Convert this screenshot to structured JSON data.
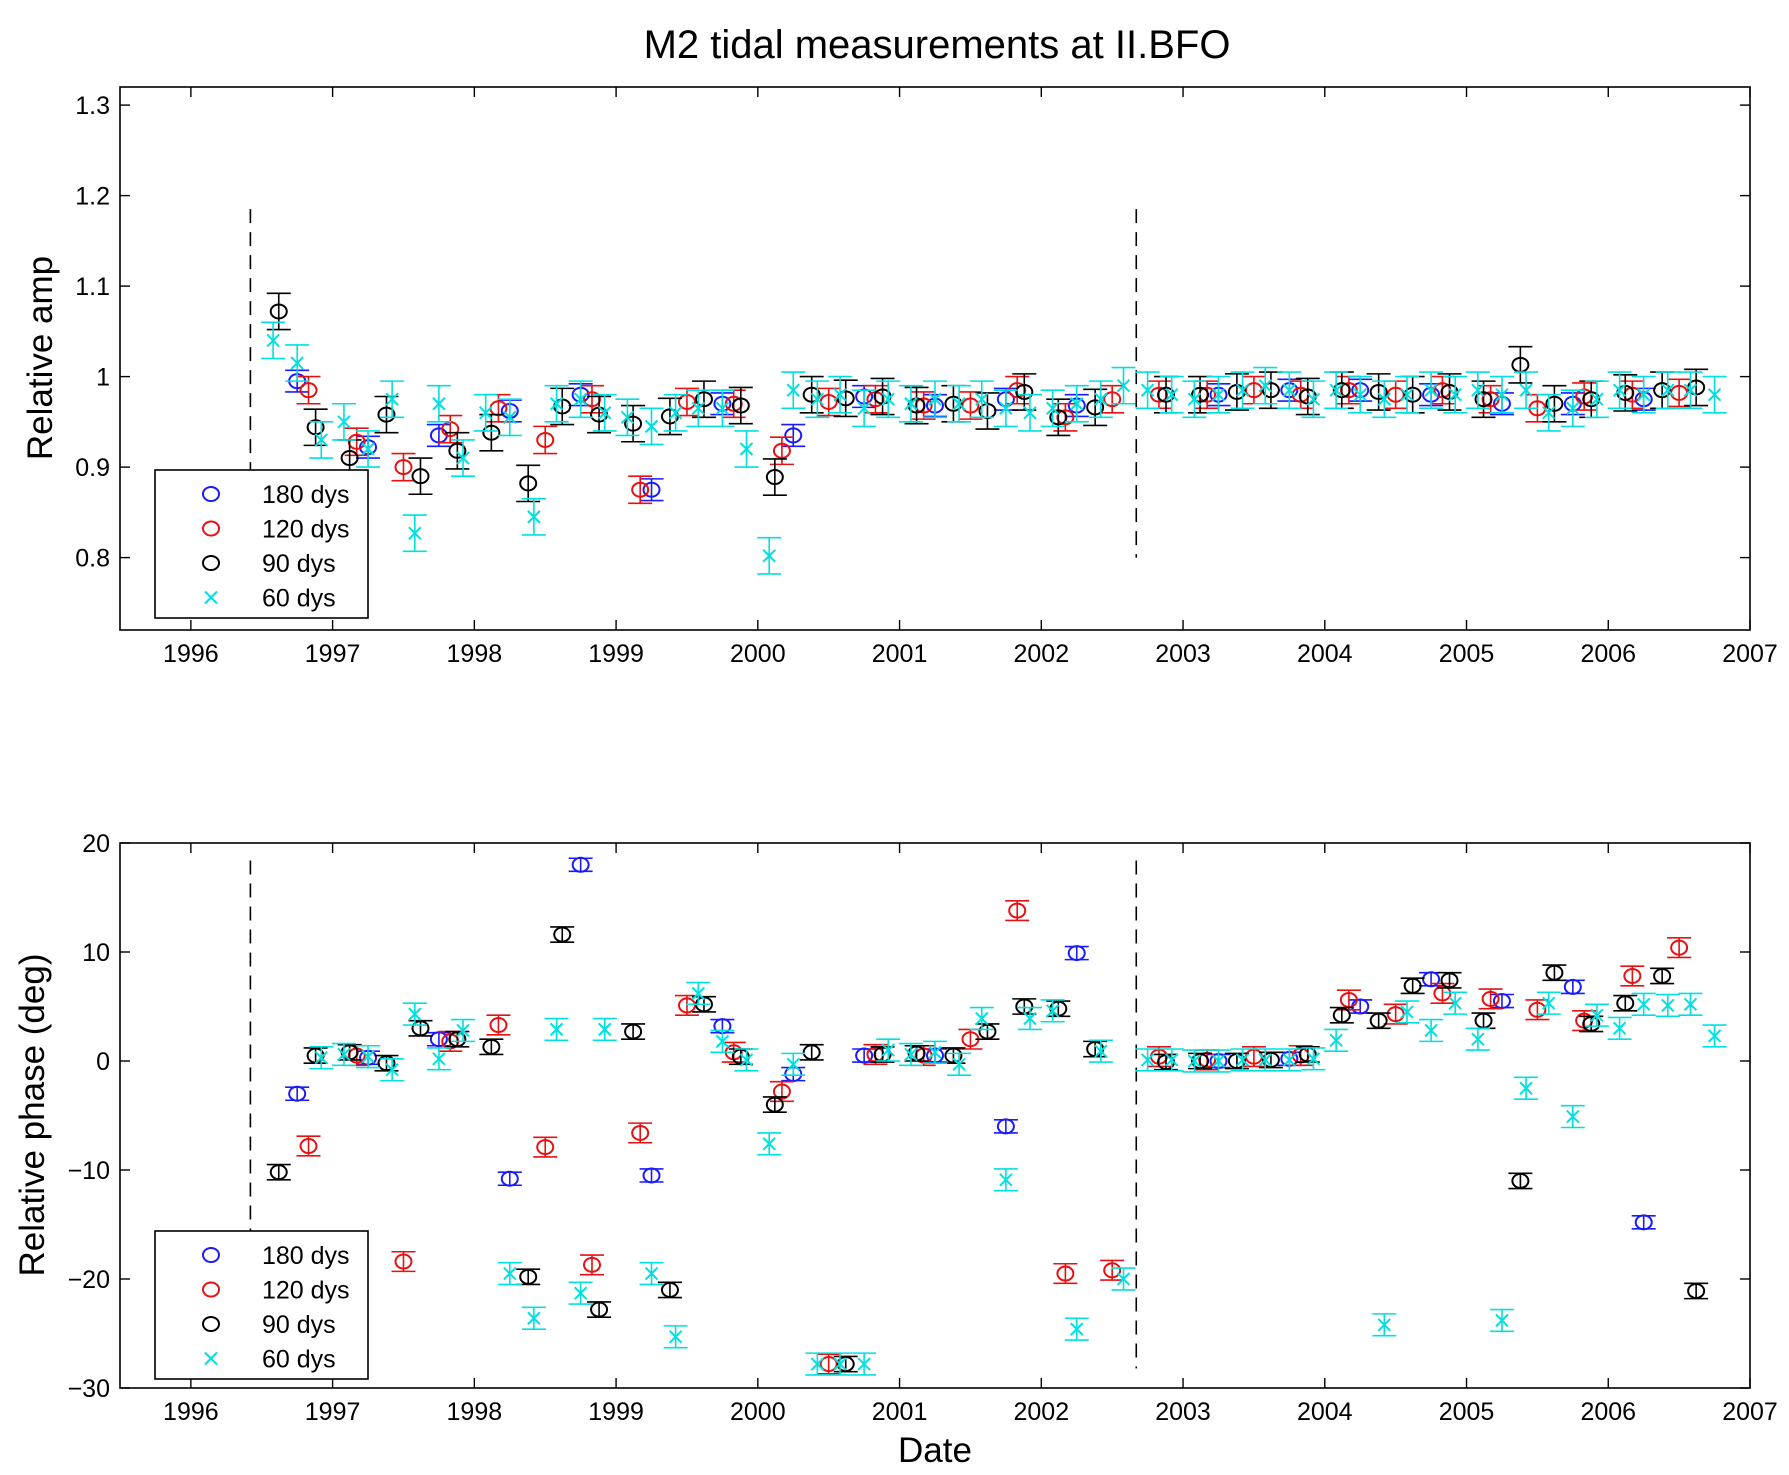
{
  "colors": {
    "180 dys": "#1a1aff",
    "120 dys": "#e81010",
    "90 dys": "#000000",
    "60 dys": "#00e0e0"
  },
  "chart_data": [
    {
      "type": "scatter",
      "title": "M2 tidal measurements at II.BFO",
      "xlabel": "",
      "ylabel": "Relative amp",
      "xlim": [
        1995.5,
        2007.0
      ],
      "ylim": [
        0.72,
        1.32
      ],
      "x_ticks": [
        1996,
        1997,
        1998,
        1999,
        2000,
        2001,
        2002,
        2003,
        2004,
        2005,
        2006,
        2007
      ],
      "x_tick_labels": [
        "1996",
        "1997",
        "1998",
        "1999",
        "2000",
        "2001",
        "2002",
        "2003",
        "2004",
        "2005",
        "2006",
        "2007"
      ],
      "y_ticks": [
        0.8,
        0.9,
        1.0,
        1.1,
        1.2,
        1.3
      ],
      "y_tick_labels": [
        "0.8",
        "0.9",
        "1",
        "1.1",
        "1.2",
        "1.3"
      ],
      "vlines": [
        1996.42,
        2002.67
      ],
      "vline_range": [
        0.8,
        1.185
      ],
      "legend_position": "bottom-left",
      "series": [
        {
          "name": "180 dys",
          "marker": "circle",
          "err": 0.012,
          "x": [
            1996.75,
            1997.25,
            1997.75,
            1998.25,
            1998.75,
            1999.25,
            1999.75,
            2000.25,
            2000.75,
            2001.25,
            2001.75,
            2002.25,
            2003.25,
            2003.75,
            2004.25,
            2004.75,
            2005.25,
            2005.75,
            2006.25
          ],
          "y": [
            0.995,
            0.922,
            0.935,
            0.962,
            0.98,
            0.875,
            0.97,
            0.935,
            0.978,
            0.968,
            0.975,
            0.968,
            0.98,
            0.985,
            0.985,
            0.98,
            0.97,
            0.97,
            0.975
          ]
        },
        {
          "name": "120 dys",
          "marker": "circle",
          "err": 0.015,
          "x": [
            1996.83,
            1997.17,
            1997.5,
            1997.83,
            1998.17,
            1998.5,
            1998.83,
            1999.17,
            1999.5,
            1999.83,
            2000.17,
            2000.5,
            2000.83,
            2001.17,
            2001.5,
            2001.83,
            2002.17,
            2002.5,
            2002.83,
            2003.17,
            2003.5,
            2003.83,
            2004.17,
            2004.5,
            2004.83,
            2005.17,
            2005.5,
            2005.83,
            2006.17,
            2006.5
          ],
          "y": [
            0.985,
            0.928,
            0.9,
            0.942,
            0.965,
            0.93,
            0.975,
            0.875,
            0.972,
            0.97,
            0.918,
            0.972,
            0.975,
            0.968,
            0.968,
            0.985,
            0.955,
            0.975,
            0.98,
            0.98,
            0.985,
            0.98,
            0.985,
            0.98,
            0.985,
            0.975,
            0.965,
            0.978,
            0.98,
            0.982
          ]
        },
        {
          "name": "90 dys",
          "marker": "circle",
          "err": 0.02,
          "x": [
            1996.62,
            1996.88,
            1997.12,
            1997.38,
            1997.62,
            1997.88,
            1998.12,
            1998.38,
            1998.62,
            1998.88,
            1999.12,
            1999.38,
            1999.62,
            1999.88,
            2000.12,
            2000.38,
            2000.62,
            2000.88,
            2001.12,
            2001.38,
            2001.62,
            2001.88,
            2002.12,
            2002.38,
            2002.88,
            2003.12,
            2003.38,
            2003.62,
            2003.88,
            2004.12,
            2004.38,
            2004.62,
            2004.88,
            2005.12,
            2005.38,
            2005.62,
            2005.88,
            2006.12,
            2006.38,
            2006.62
          ],
          "y": [
            1.072,
            0.944,
            0.91,
            0.958,
            0.89,
            0.918,
            0.938,
            0.882,
            0.967,
            0.958,
            0.948,
            0.956,
            0.975,
            0.968,
            0.889,
            0.98,
            0.976,
            0.978,
            0.968,
            0.97,
            0.962,
            0.983,
            0.955,
            0.966,
            0.98,
            0.98,
            0.983,
            0.985,
            0.978,
            0.985,
            0.983,
            0.98,
            0.983,
            0.975,
            1.013,
            0.97,
            0.975,
            0.982,
            0.985,
            0.988
          ]
        },
        {
          "name": "60 dys",
          "marker": "x",
          "err": 0.02,
          "x": [
            1996.58,
            1996.75,
            1996.92,
            1997.08,
            1997.25,
            1997.42,
            1997.58,
            1997.75,
            1997.92,
            1998.08,
            1998.25,
            1998.42,
            1998.58,
            1998.75,
            1998.92,
            1999.08,
            1999.25,
            1999.42,
            1999.58,
            1999.75,
            1999.92,
            2000.08,
            2000.25,
            2000.42,
            2000.58,
            2000.75,
            2000.92,
            2001.08,
            2001.25,
            2001.42,
            2001.58,
            2001.75,
            2001.92,
            2002.08,
            2002.25,
            2002.42,
            2002.58,
            2002.75,
            2002.92,
            2003.08,
            2003.25,
            2003.42,
            2003.58,
            2003.75,
            2003.92,
            2004.08,
            2004.25,
            2004.42,
            2004.58,
            2004.75,
            2004.92,
            2005.08,
            2005.25,
            2005.42,
            2005.58,
            2005.75,
            2005.92,
            2006.08,
            2006.25,
            2006.42,
            2006.58,
            2006.75
          ],
          "y": [
            1.04,
            1.015,
            0.93,
            0.95,
            0.92,
            0.975,
            0.827,
            0.97,
            0.91,
            0.96,
            0.955,
            0.845,
            0.97,
            0.975,
            0.96,
            0.955,
            0.945,
            0.96,
            0.965,
            0.965,
            0.92,
            0.802,
            0.985,
            0.975,
            0.98,
            0.965,
            0.975,
            0.97,
            0.975,
            0.97,
            0.975,
            0.965,
            0.96,
            0.965,
            0.97,
            0.975,
            0.99,
            0.985,
            0.98,
            0.975,
            0.98,
            0.985,
            0.99,
            0.985,
            0.975,
            0.985,
            0.98,
            0.975,
            0.98,
            0.985,
            0.98,
            0.985,
            0.98,
            0.985,
            0.96,
            0.965,
            0.975,
            0.985,
            0.98,
            0.985,
            0.985,
            0.98
          ]
        }
      ]
    },
    {
      "type": "scatter",
      "title": "",
      "xlabel": "Date",
      "ylabel": "Relative phase (deg)",
      "xlim": [
        1995.5,
        2007.0
      ],
      "ylim": [
        -30,
        20
      ],
      "x_ticks": [
        1996,
        1997,
        1998,
        1999,
        2000,
        2001,
        2002,
        2003,
        2004,
        2005,
        2006,
        2007
      ],
      "x_tick_labels": [
        "1996",
        "1997",
        "1998",
        "1999",
        "2000",
        "2001",
        "2002",
        "2003",
        "2004",
        "2005",
        "2006",
        "2007"
      ],
      "y_ticks": [
        -30,
        -20,
        -10,
        0,
        10,
        20
      ],
      "y_tick_labels": [
        "−30",
        "−20",
        "−10",
        "0",
        "10",
        "20"
      ],
      "vlines": [
        1996.42,
        2002.67
      ],
      "vline_range": [
        -28.2,
        18.4
      ],
      "legend_position": "bottom-left",
      "series": [
        {
          "name": "180 dys",
          "marker": "circle",
          "err": 0.6,
          "x": [
            1996.75,
            1997.25,
            1997.75,
            1998.25,
            1998.75,
            1999.25,
            1999.75,
            2000.25,
            2000.75,
            2001.25,
            2001.75,
            2002.25,
            2003.25,
            2003.75,
            2004.25,
            2004.75,
            2005.25,
            2005.75,
            2006.25
          ],
          "y": [
            -3,
            0.3,
            2,
            -10.8,
            18,
            -10.5,
            3.2,
            -1.2,
            0.5,
            0.5,
            -6,
            9.9,
            0,
            0.2,
            5,
            7.5,
            5.5,
            6.8,
            -14.8
          ]
        },
        {
          "name": "120 dys",
          "marker": "circle",
          "err": 0.9,
          "x": [
            1996.83,
            1997.17,
            1997.5,
            1997.83,
            1998.17,
            1998.5,
            1998.83,
            1999.17,
            1999.5,
            1999.83,
            2000.17,
            2000.5,
            2000.83,
            2001.17,
            2001.5,
            2001.83,
            2002.17,
            2002.5,
            2002.83,
            2003.17,
            2003.5,
            2003.83,
            2004.17,
            2004.5,
            2004.83,
            2005.17,
            2005.5,
            2005.83,
            2006.17,
            2006.5
          ],
          "y": [
            -7.8,
            0.5,
            -18.4,
            1.8,
            3.3,
            -7.9,
            -18.7,
            -6.6,
            5.1,
            0.8,
            -2.8,
            -27.8,
            0.6,
            0.5,
            2,
            13.8,
            -19.5,
            -19.2,
            0.4,
            0.1,
            0.4,
            0.5,
            5.6,
            4.3,
            6.2,
            5.7,
            4.7,
            3.7,
            7.8,
            10.4
          ]
        },
        {
          "name": "90 dys",
          "marker": "circle",
          "err": 0.7,
          "x": [
            1996.62,
            1996.88,
            1997.12,
            1997.38,
            1997.62,
            1997.88,
            1998.12,
            1998.38,
            1998.62,
            1998.88,
            1999.12,
            1999.38,
            1999.62,
            1999.88,
            2000.12,
            2000.38,
            2000.62,
            2000.88,
            2001.12,
            2001.38,
            2001.62,
            2001.88,
            2002.12,
            2002.38,
            2002.88,
            2003.12,
            2003.38,
            2003.62,
            2003.88,
            2004.12,
            2004.38,
            2004.62,
            2004.88,
            2005.12,
            2005.38,
            2005.62,
            2005.88,
            2006.12,
            2006.38,
            2006.62
          ],
          "y": [
            -10.2,
            0.5,
            0.8,
            -0.2,
            3,
            2,
            1.3,
            -19.8,
            11.6,
            -22.8,
            2.7,
            -21,
            5.2,
            0.4,
            -4,
            0.8,
            -27.8,
            0.6,
            0.7,
            0.5,
            2.7,
            5,
            4.8,
            1.1,
            -0.1,
            0,
            0,
            0.1,
            0.6,
            4.2,
            3.7,
            6.9,
            7.4,
            3.7,
            -11,
            8.1,
            3.4,
            5.3,
            7.8,
            -21.1
          ]
        },
        {
          "name": "60 dys",
          "marker": "x",
          "err": 1.0,
          "x": [
            1996.92,
            1997.08,
            1997.25,
            1997.42,
            1997.58,
            1997.75,
            1997.92,
            1998.25,
            1998.42,
            1998.58,
            1998.75,
            1998.92,
            1999.25,
            1999.42,
            1999.58,
            1999.75,
            1999.92,
            2000.08,
            2000.25,
            2000.42,
            2000.58,
            2000.75,
            2000.92,
            2001.08,
            2001.25,
            2001.42,
            2001.58,
            2001.75,
            2001.92,
            2002.08,
            2002.25,
            2002.42,
            2002.58,
            2002.75,
            2002.92,
            2003.08,
            2003.25,
            2003.42,
            2003.58,
            2003.75,
            2003.92,
            2004.08,
            2004.42,
            2004.58,
            2004.75,
            2004.92,
            2005.08,
            2005.25,
            2005.42,
            2005.58,
            2005.75,
            2005.92,
            2006.08,
            2006.25,
            2006.42,
            2006.58,
            2006.75
          ],
          "y": [
            0.3,
            0.6,
            0.4,
            -0.8,
            4.3,
            0.2,
            2.8,
            -19.5,
            -23.6,
            2.9,
            -21.3,
            2.9,
            -19.5,
            -25.3,
            6.2,
            1.8,
            0.1,
            -7.6,
            -0.3,
            -27.8,
            -27.8,
            -27.8,
            1,
            0.6,
            0.8,
            -0.3,
            3.9,
            -10.9,
            3.9,
            4.6,
            -24.6,
            0.9,
            -20,
            0.1,
            0.1,
            0,
            0,
            0.1,
            0.1,
            0.1,
            0.2,
            1.9,
            -24.2,
            4.5,
            2.8,
            5.3,
            2,
            -23.8,
            -2.5,
            5.3,
            -5.1,
            4.2,
            3,
            5.2,
            5.1,
            5.2,
            2.3
          ]
        }
      ]
    }
  ]
}
